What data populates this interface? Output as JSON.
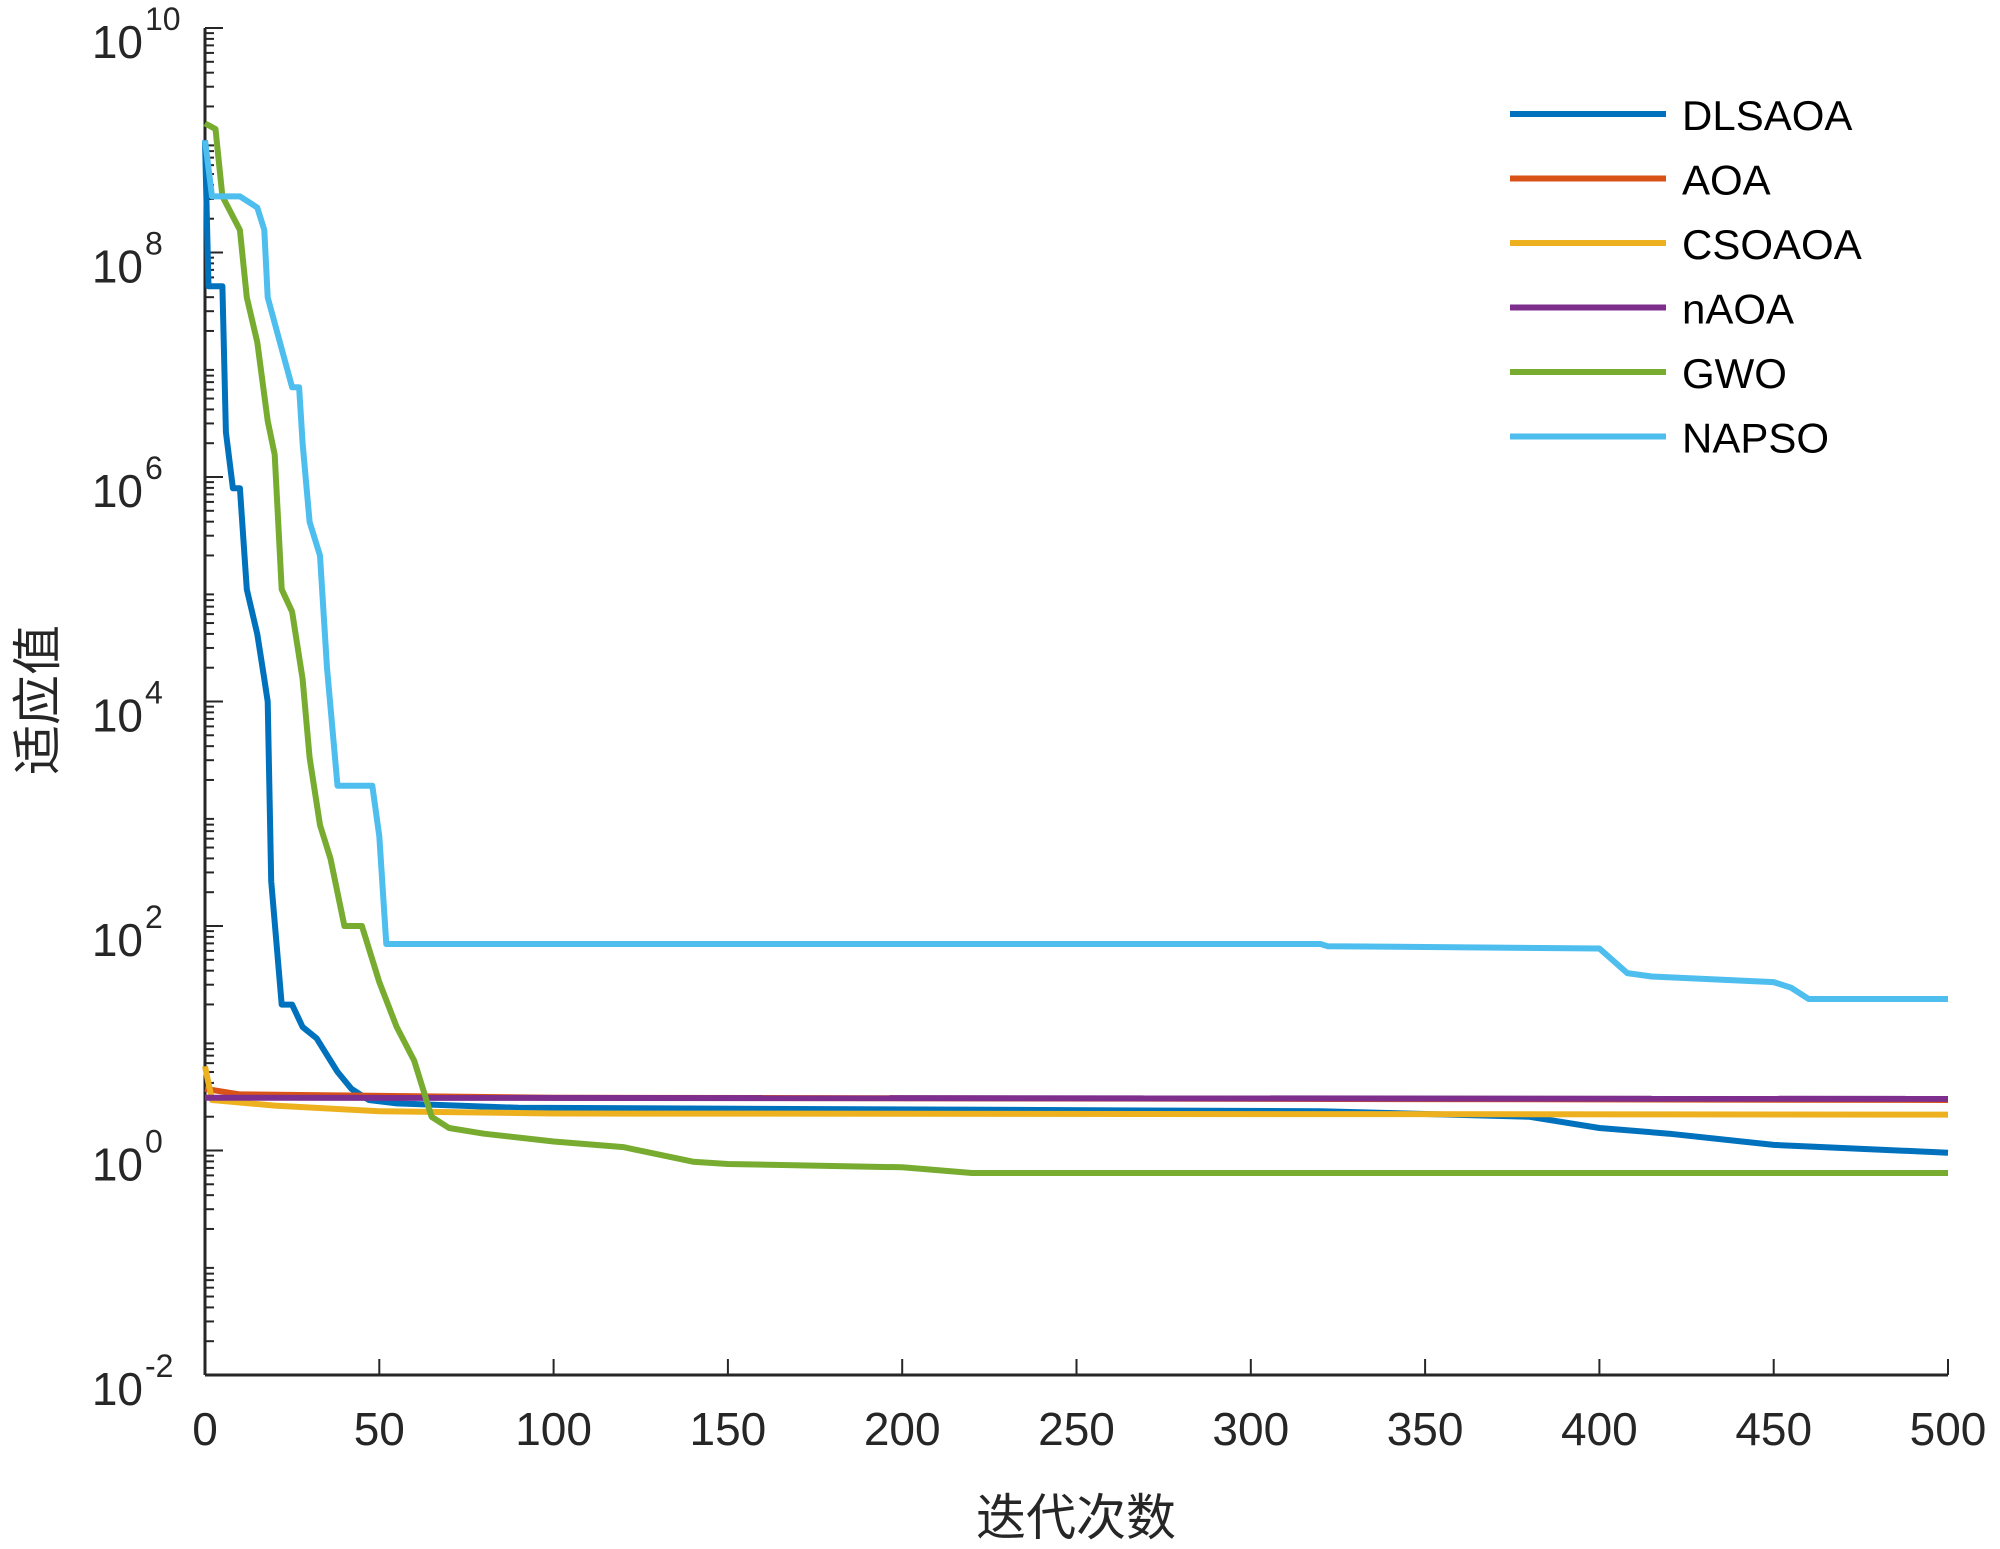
{
  "chart_data": {
    "type": "line",
    "title": "",
    "xlabel": "迭代次数",
    "ylabel": "适应值",
    "xlim": [
      0,
      500
    ],
    "ylim_log10": [
      -2,
      10
    ],
    "yscale": "log",
    "grid": false,
    "legend_position": "top-right",
    "x_ticks": [
      "0",
      "50",
      "100",
      "150",
      "200",
      "250",
      "300",
      "350",
      "400",
      "450",
      "500"
    ],
    "y_ticks": [
      {
        "base": "10",
        "exp": "10"
      },
      {
        "base": "10",
        "exp": "8"
      },
      {
        "base": "10",
        "exp": "6"
      },
      {
        "base": "10",
        "exp": "4"
      },
      {
        "base": "10",
        "exp": "2"
      },
      {
        "base": "10",
        "exp": "0"
      },
      {
        "base": "10",
        "exp": "-2"
      }
    ],
    "series": [
      {
        "name": "DLSAOA",
        "color": "#0072BD",
        "points_log10": [
          [
            0,
            9.0
          ],
          [
            1,
            7.7
          ],
          [
            5,
            7.7
          ],
          [
            6,
            6.4
          ],
          [
            8,
            5.9
          ],
          [
            10,
            5.9
          ],
          [
            12,
            5.0
          ],
          [
            15,
            4.6
          ],
          [
            17,
            4.2
          ],
          [
            18,
            4.0
          ],
          [
            19,
            2.4
          ],
          [
            22,
            1.3
          ],
          [
            25,
            1.3
          ],
          [
            28,
            1.1
          ],
          [
            32,
            1.0
          ],
          [
            35,
            0.85
          ],
          [
            38,
            0.7
          ],
          [
            42,
            0.55
          ],
          [
            47,
            0.45
          ],
          [
            55,
            0.42
          ],
          [
            90,
            0.38
          ],
          [
            320,
            0.35
          ],
          [
            380,
            0.3
          ],
          [
            400,
            0.2
          ],
          [
            420,
            0.15
          ],
          [
            450,
            0.05
          ],
          [
            500,
            -0.02
          ]
        ]
      },
      {
        "name": "AOA",
        "color": "#D95319",
        "points_log10": [
          [
            0,
            0.55
          ],
          [
            10,
            0.5
          ],
          [
            100,
            0.47
          ],
          [
            500,
            0.45
          ]
        ]
      },
      {
        "name": "CSOAOA",
        "color": "#EDB120",
        "points_log10": [
          [
            0,
            0.75
          ],
          [
            2,
            0.45
          ],
          [
            20,
            0.4
          ],
          [
            50,
            0.35
          ],
          [
            100,
            0.33
          ],
          [
            500,
            0.32
          ]
        ]
      },
      {
        "name": "nAOA",
        "color": "#7E2F8E",
        "points_log10": [
          [
            0,
            0.47
          ],
          [
            500,
            0.46
          ]
        ]
      },
      {
        "name": "GWO",
        "color": "#77AC30",
        "points_log10": [
          [
            0,
            9.15
          ],
          [
            3,
            9.1
          ],
          [
            5,
            8.5
          ],
          [
            10,
            8.2
          ],
          [
            12,
            7.6
          ],
          [
            15,
            7.2
          ],
          [
            18,
            6.5
          ],
          [
            20,
            6.2
          ],
          [
            22,
            5.0
          ],
          [
            25,
            4.8
          ],
          [
            28,
            4.2
          ],
          [
            30,
            3.5
          ],
          [
            33,
            2.9
          ],
          [
            36,
            2.6
          ],
          [
            40,
            2.0
          ],
          [
            45,
            2.0
          ],
          [
            50,
            1.5
          ],
          [
            55,
            1.1
          ],
          [
            60,
            0.8
          ],
          [
            65,
            0.3
          ],
          [
            70,
            0.2
          ],
          [
            80,
            0.15
          ],
          [
            100,
            0.08
          ],
          [
            120,
            0.03
          ],
          [
            140,
            -0.1
          ],
          [
            150,
            -0.12
          ],
          [
            200,
            -0.15
          ],
          [
            220,
            -0.2
          ],
          [
            500,
            -0.2
          ]
        ]
      },
      {
        "name": "NAPSO",
        "color": "#4DBEEE",
        "points_log10": [
          [
            0,
            9.0
          ],
          [
            2,
            8.5
          ],
          [
            10,
            8.5
          ],
          [
            15,
            8.4
          ],
          [
            17,
            8.2
          ],
          [
            18,
            7.6
          ],
          [
            25,
            6.8
          ],
          [
            27,
            6.8
          ],
          [
            28,
            6.3
          ],
          [
            30,
            5.6
          ],
          [
            33,
            5.3
          ],
          [
            35,
            4.3
          ],
          [
            37,
            3.6
          ],
          [
            38,
            3.25
          ],
          [
            48,
            3.25
          ],
          [
            50,
            2.8
          ],
          [
            52,
            1.84
          ],
          [
            320,
            1.84
          ],
          [
            322,
            1.82
          ],
          [
            400,
            1.8
          ],
          [
            408,
            1.58
          ],
          [
            415,
            1.55
          ],
          [
            450,
            1.5
          ],
          [
            455,
            1.45
          ],
          [
            460,
            1.35
          ],
          [
            500,
            1.35
          ]
        ]
      }
    ]
  }
}
